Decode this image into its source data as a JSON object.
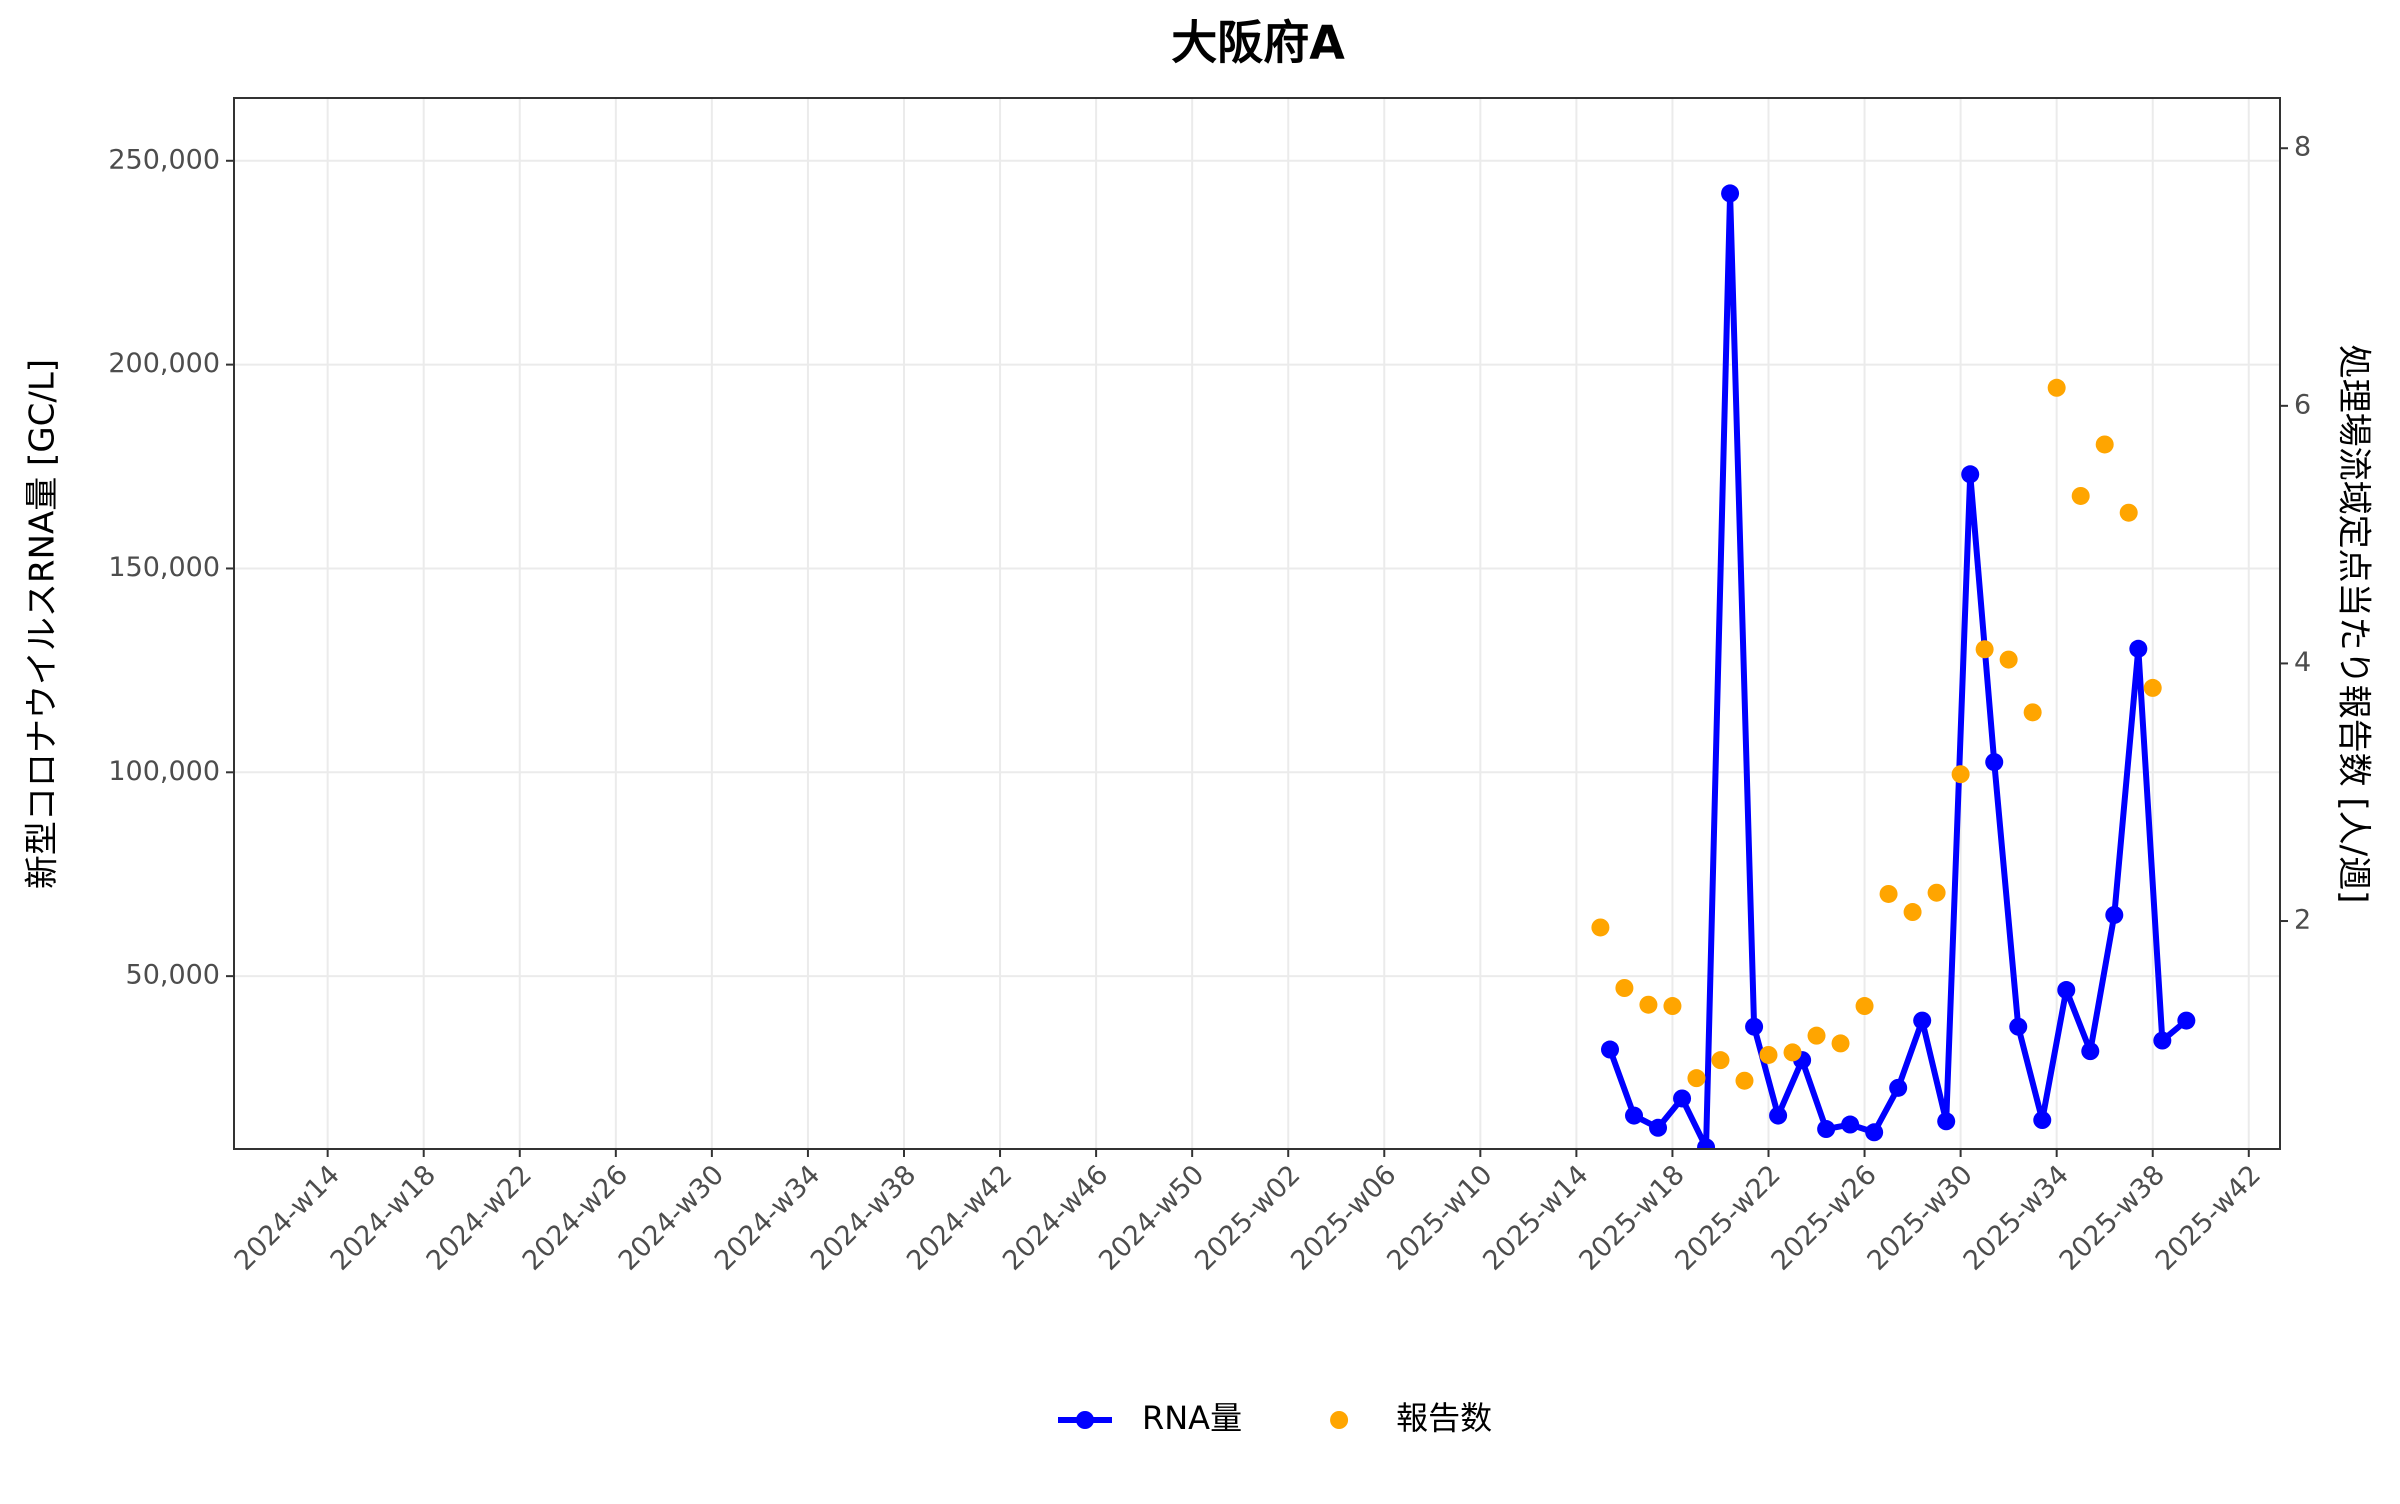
{
  "chart_data": {
    "type": "line",
    "title": "大阪府A",
    "y_label": "新型コロナウイルスRNA量 [GC/L]",
    "y2_label": "処理場流域定点当たり報告数 [人/週]",
    "xlim": [
      -3.9,
      81.3
    ],
    "xticks": [
      {
        "value": 0,
        "label": "2024-w14"
      },
      {
        "value": 4,
        "label": "2024-w18"
      },
      {
        "value": 8,
        "label": "2024-w22"
      },
      {
        "value": 12,
        "label": "2024-w26"
      },
      {
        "value": 16,
        "label": "2024-w30"
      },
      {
        "value": 20,
        "label": "2024-w34"
      },
      {
        "value": 24,
        "label": "2024-w38"
      },
      {
        "value": 28,
        "label": "2024-w42"
      },
      {
        "value": 32,
        "label": "2024-w46"
      },
      {
        "value": 36,
        "label": "2024-w50"
      },
      {
        "value": 40,
        "label": "2025-w02"
      },
      {
        "value": 44,
        "label": "2025-w06"
      },
      {
        "value": 48,
        "label": "2025-w10"
      },
      {
        "value": 52,
        "label": "2025-w14"
      },
      {
        "value": 56,
        "label": "2025-w18"
      },
      {
        "value": 60,
        "label": "2025-w22"
      },
      {
        "value": 64,
        "label": "2025-w26"
      },
      {
        "value": 68,
        "label": "2025-w30"
      },
      {
        "value": 72,
        "label": "2025-w34"
      },
      {
        "value": 76,
        "label": "2025-w38"
      },
      {
        "value": 80,
        "label": "2025-w42"
      }
    ],
    "ylim": [
      7600,
      265400
    ],
    "yticks": [
      {
        "value": 50000,
        "label": "50,000"
      },
      {
        "value": 100000,
        "label": "100,000"
      },
      {
        "value": 150000,
        "label": "150,000"
      },
      {
        "value": 200000,
        "label": "200,000"
      },
      {
        "value": 250000,
        "label": "250,000"
      }
    ],
    "y2lim": [
      0.23,
      8.39
    ],
    "y2ticks": [
      2,
      4,
      6,
      8
    ],
    "grid": true,
    "legend": "bottom",
    "series": [
      {
        "name": "RNA量",
        "type": "line",
        "color": "#0000ff",
        "x": [
          53.4,
          54.4,
          55.4,
          56.4,
          57.4,
          58.4,
          59.4,
          60.4,
          61.4,
          62.4,
          63.4,
          64.4,
          65.4,
          66.4,
          67.4,
          68.4,
          69.4,
          70.4,
          71.4,
          72.4,
          73.4,
          74.4,
          75.4,
          76.4,
          77.4
        ],
        "values": [
          32000,
          15800,
          12800,
          20000,
          8000,
          242000,
          37600,
          15800,
          29400,
          12500,
          13600,
          11700,
          22600,
          39100,
          14400,
          173100,
          102500,
          37600,
          14700,
          46600,
          31600,
          65000,
          130300,
          34200,
          39100
        ]
      },
      {
        "name": "報告数",
        "type": "scatter",
        "axis": "y2",
        "color": "#ffa500",
        "x": [
          53,
          54,
          55,
          56,
          57,
          58,
          59,
          60,
          61,
          62,
          63,
          64,
          65,
          66,
          67,
          68,
          69,
          70,
          71,
          72,
          73,
          74,
          75,
          76
        ],
        "values": [
          1.95,
          1.48,
          1.35,
          1.34,
          0.78,
          0.92,
          0.76,
          0.96,
          0.98,
          1.11,
          1.05,
          1.34,
          2.21,
          2.07,
          2.22,
          3.14,
          4.11,
          4.03,
          3.62,
          6.14,
          5.3,
          5.7,
          5.17,
          3.81
        ]
      }
    ]
  }
}
